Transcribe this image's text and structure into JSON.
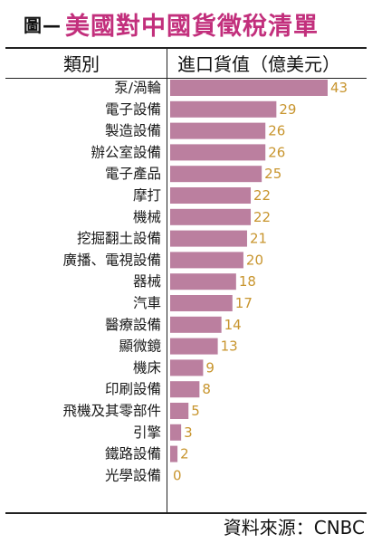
{
  "header": {
    "title_prefix": "圖—",
    "title": "美國對中國貨徵稅清單",
    "col_category": "類別",
    "col_value": "進口貨值（億美元）"
  },
  "footer": {
    "source": "資料來源：CNBC"
  },
  "colors": {
    "title": "#c22f7c",
    "bar": "#bb7f9f",
    "value_label": "#c8952e",
    "rule": "#222222"
  },
  "chart_data": {
    "type": "bar",
    "orientation": "horizontal",
    "title": "美國對中國貨徵稅清單",
    "xlabel": "進口貨值（億美元）",
    "ylabel": "類別",
    "categories": [
      "泵/渦輪",
      "電子設備",
      "製造設備",
      "辦公室設備",
      "電子產品",
      "摩打",
      "機械",
      "挖掘翻土設備",
      "廣播、電視設備",
      "器械",
      "汽車",
      "醫療設備",
      "顯微鏡",
      "機床",
      "印刷設備",
      "飛機及其零部件",
      "引擎",
      "鐵路設備",
      "光學設備"
    ],
    "values": [
      43,
      29,
      26,
      26,
      25,
      22,
      22,
      21,
      20,
      18,
      17,
      14,
      13,
      9,
      8,
      5,
      3,
      2,
      0
    ],
    "xlim": [
      0,
      43
    ],
    "grid": false,
    "legend": "none",
    "data_labels": true
  }
}
